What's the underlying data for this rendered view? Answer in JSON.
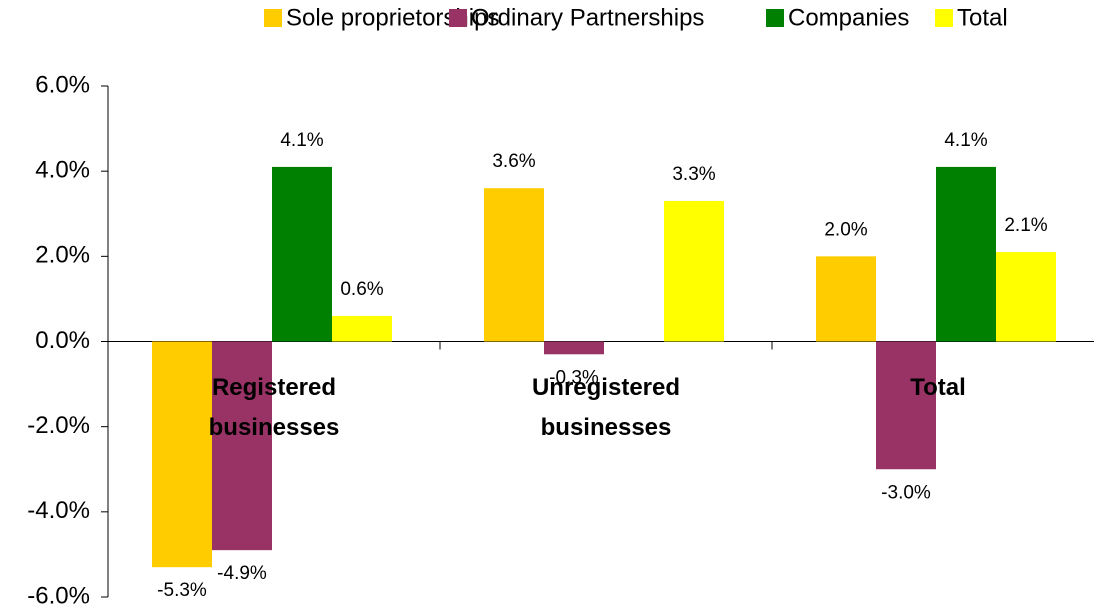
{
  "chart_data": {
    "type": "bar",
    "categories": [
      "Registered businesses",
      "Unregistered businesses",
      "Total"
    ],
    "series": [
      {
        "name": "Sole proprietorships",
        "color": "#FFCC00",
        "values": [
          -5.3,
          3.6,
          2.0
        ],
        "value_labels": [
          "-5.3%",
          "3.6%",
          "2.0%"
        ]
      },
      {
        "name": "Ordinary Partnerships",
        "color": "#993366",
        "values": [
          -4.9,
          -0.3,
          -3.0
        ],
        "value_labels": [
          "-4.9%",
          "-0.3%",
          "-3.0%"
        ]
      },
      {
        "name": "Companies",
        "color": "#008000",
        "values": [
          4.1,
          null,
          4.1
        ],
        "value_labels": [
          "4.1%",
          null,
          "4.1%"
        ]
      },
      {
        "name": "Total",
        "color": "#FFFF00",
        "values": [
          0.6,
          3.3,
          2.1
        ],
        "value_labels": [
          "0.6%",
          "3.3%",
          "2.1%"
        ]
      }
    ],
    "ylim": [
      -6,
      6
    ],
    "yticks": [
      {
        "value": -6,
        "label": "-6.0%"
      },
      {
        "value": -4,
        "label": "-4.0%"
      },
      {
        "value": -2,
        "label": "-2.0%"
      },
      {
        "value": 0,
        "label": "0.0%"
      },
      {
        "value": 2,
        "label": "2.0%"
      },
      {
        "value": 4,
        "label": "4.0%"
      },
      {
        "value": 6,
        "label": "6.0%"
      }
    ],
    "grid": false,
    "legend": "top"
  }
}
